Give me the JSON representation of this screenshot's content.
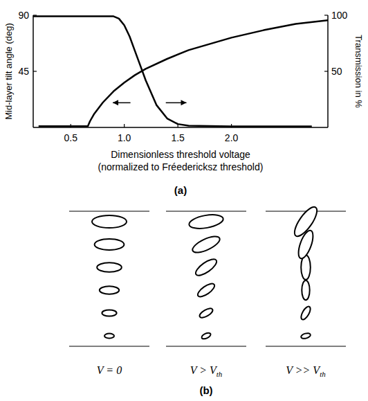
{
  "chart_data": {
    "type": "line",
    "panel_label": "(a)",
    "xlabel": [
      "Dimensionless threshold voltage",
      "(normalized to Fréedericksz threshold)"
    ],
    "ylabel": "Mid-layer tilt angle (deg)",
    "y2label": "Transmission in %",
    "xlim": [
      0.15,
      2.9
    ],
    "xticks": [
      0.5,
      {
        "value": 1,
        "label": "1.0"
      },
      1.5,
      {
        "value": 2,
        "label": "2.0"
      }
    ],
    "ylim": [
      0,
      90
    ],
    "yticks": [
      45,
      90
    ],
    "y2lim": [
      0,
      100
    ],
    "y2ticks": [
      50,
      100
    ],
    "series": [
      {
        "x": [
          0.2,
          0.66,
          0.68,
          0.72,
          0.8,
          0.9,
          1.0,
          1.1,
          1.2,
          1.4,
          1.6,
          1.8,
          2.0,
          2.3,
          2.6,
          2.9
        ],
        "values": [
          1,
          1,
          5,
          11,
          20,
          29,
          36,
          42,
          47,
          55,
          62,
          67,
          72,
          78,
          83,
          86
        ],
        "color": "#000000"
      },
      {
        "x": [
          0.15,
          0.9,
          0.95,
          1.0,
          1.05,
          1.1,
          1.15,
          1.2,
          1.3,
          1.4,
          1.5,
          1.6,
          2.0,
          2.75
        ],
        "values": [
          99,
          99,
          97,
          91,
          81,
          68,
          55,
          42,
          20,
          8,
          3,
          1.5,
          1,
          1
        ],
        "color": "#000000",
        "axis": "y2"
      }
    ]
  },
  "diagram": {
    "panel_label": "(b)",
    "cells": [
      {
        "label": "V = 0",
        "tilts": [
          0,
          0,
          0,
          0,
          0,
          0
        ]
      },
      {
        "label": "V > V",
        "subscript": "th",
        "tilts": [
          25,
          30,
          35,
          35,
          25,
          10
        ]
      },
      {
        "label": "V >> V",
        "subscript": "th",
        "tilts": [
          15,
          60,
          90,
          90,
          70,
          55
        ]
      }
    ]
  }
}
